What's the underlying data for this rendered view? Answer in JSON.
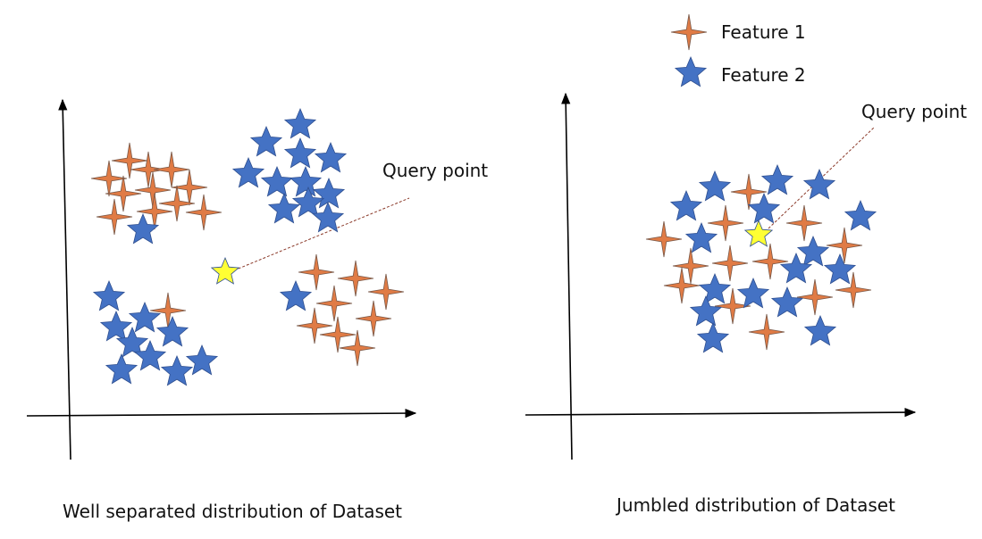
{
  "legend": [
    {
      "label": "Feature 1",
      "marker": "four-point-star",
      "color": "#E07B45"
    },
    {
      "label": "Feature 2",
      "marker": "five-point-star",
      "color": "#4472C4"
    }
  ],
  "query_marker_color": "#FFFF33",
  "panels": [
    {
      "caption": "Well separated distribution of Dataset",
      "query_label": "Query point"
    },
    {
      "caption": "Jumbled distribution of Dataset",
      "query_label": "Query point"
    }
  ]
}
